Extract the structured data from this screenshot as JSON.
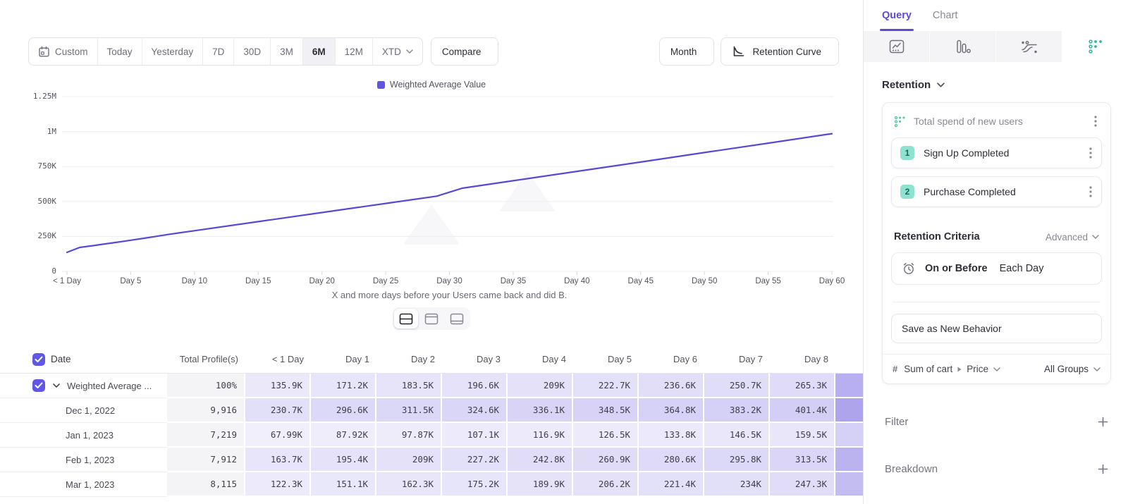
{
  "colors": {
    "accent_purple": "#5b49d8",
    "line": "#5848d6",
    "teal": "#2fb79c",
    "heat_rgb": "92,73,218"
  },
  "toolbar": {
    "date_ranges": [
      "Custom",
      "Today",
      "Yesterday",
      "7D",
      "30D",
      "3M",
      "6M",
      "12M",
      "XTD"
    ],
    "active_range": "6M",
    "compare_label": "Compare",
    "granularity_label": "Month",
    "chart_type_label": "Retention Curve"
  },
  "chart": {
    "y_ticks": [
      {
        "label": "1.25M",
        "value": 1250000
      },
      {
        "label": "1M",
        "value": 1000000
      },
      {
        "label": "750K",
        "value": 750000
      },
      {
        "label": "500K",
        "value": 500000
      },
      {
        "label": "250K",
        "value": 250000
      },
      {
        "label": "0",
        "value": 0
      }
    ],
    "x_ticks": [
      {
        "label": "< 1 Day",
        "day": 0
      },
      {
        "label": "Day 5",
        "day": 5
      },
      {
        "label": "Day 10",
        "day": 10
      },
      {
        "label": "Day 15",
        "day": 15
      },
      {
        "label": "Day 20",
        "day": 20
      },
      {
        "label": "Day 25",
        "day": 25
      },
      {
        "label": "Day 30",
        "day": 30
      },
      {
        "label": "Day 35",
        "day": 35
      },
      {
        "label": "Day 40",
        "day": 40
      },
      {
        "label": "Day 45",
        "day": 45
      },
      {
        "label": "Day 50",
        "day": 50
      },
      {
        "label": "Day 55",
        "day": 55
      },
      {
        "label": "Day 60",
        "day": 60
      }
    ]
  },
  "chart_data": {
    "type": "line",
    "title": "",
    "xlabel": "X and more days before your Users came back and did B.",
    "ylabel": "",
    "xlim": [
      0,
      60
    ],
    "ylim": [
      0,
      1250000
    ],
    "grid": "horizontal",
    "legend_position": "top-center",
    "series": [
      {
        "name": "Weighted Average Value",
        "color": "#5848d6",
        "points": [
          [
            0,
            135900
          ],
          [
            1,
            171200
          ],
          [
            2,
            183500
          ],
          [
            3,
            196600
          ],
          [
            4,
            209000
          ],
          [
            5,
            222700
          ],
          [
            6,
            236600
          ],
          [
            7,
            250700
          ],
          [
            8,
            265300
          ],
          [
            10,
            291000
          ],
          [
            15,
            356000
          ],
          [
            20,
            421000
          ],
          [
            25,
            486000
          ],
          [
            29,
            538000
          ],
          [
            31,
            595000
          ],
          [
            35,
            648000
          ],
          [
            40,
            715000
          ],
          [
            45,
            782000
          ],
          [
            50,
            850000
          ],
          [
            55,
            917000
          ],
          [
            60,
            985000
          ]
        ]
      }
    ]
  },
  "view_toggles": [
    {
      "name": "split-view",
      "active": true
    },
    {
      "name": "chart-view",
      "active": false
    },
    {
      "name": "table-view",
      "active": false
    }
  ],
  "table": {
    "headers": [
      "Date",
      "Total Profile(s)",
      "< 1 Day",
      "Day 1",
      "Day 2",
      "Day 3",
      "Day 4",
      "Day 5",
      "Day 6",
      "Day 7",
      "Day 8"
    ],
    "rows": [
      {
        "label": "Weighted Average ...",
        "expandable": true,
        "checked": true,
        "total": "100%",
        "values": [
          "135.9K",
          "171.2K",
          "183.5K",
          "196.6K",
          "209K",
          "222.7K",
          "236.6K",
          "250.7K",
          "265.3K"
        ],
        "day9_shade": 0.44
      },
      {
        "label": "Dec 1, 2022",
        "expandable": false,
        "checked": false,
        "total": "9,916",
        "values": [
          "230.7K",
          "296.6K",
          "311.5K",
          "324.6K",
          "336.1K",
          "348.5K",
          "364.8K",
          "383.2K",
          "401.4K"
        ],
        "day9_shade": 0.5
      },
      {
        "label": "Jan 1, 2023",
        "expandable": false,
        "checked": false,
        "total": "7,219",
        "values": [
          "67.99K",
          "87.92K",
          "97.87K",
          "107.1K",
          "116.9K",
          "126.5K",
          "133.8K",
          "146.5K",
          "159.5K"
        ],
        "day9_shade": 0.26
      },
      {
        "label": "Feb 1, 2023",
        "expandable": false,
        "checked": false,
        "total": "7,912",
        "values": [
          "163.7K",
          "195.4K",
          "209K",
          "227.2K",
          "242.8K",
          "260.9K",
          "280.6K",
          "295.8K",
          "313.5K"
        ],
        "day9_shade": 0.42
      },
      {
        "label": "Mar 1, 2023",
        "expandable": false,
        "checked": false,
        "total": "8,115",
        "values": [
          "122.3K",
          "151.1K",
          "162.3K",
          "175.2K",
          "189.9K",
          "206.2K",
          "221.4K",
          "234K",
          "247.3K"
        ],
        "day9_shade": 0.36
      }
    ]
  },
  "query_panel": {
    "tabs": [
      {
        "label": "Query",
        "active": true
      },
      {
        "label": "Chart",
        "active": false
      }
    ],
    "report_types": [
      "insights",
      "funnels",
      "flows",
      "retention"
    ],
    "active_report": "retention",
    "section_label": "Retention",
    "behavior": {
      "title": "Total spend of new users",
      "steps": [
        {
          "index": "1",
          "label": "Sign Up Completed"
        },
        {
          "index": "2",
          "label": "Purchase Completed"
        }
      ],
      "criteria_label": "Retention Criteria",
      "criteria_mode": "Advanced",
      "criteria": {
        "condition": "On or Before",
        "window": "Each Day"
      },
      "save_label": "Save as New Behavior",
      "measure": {
        "prefix": "#",
        "event": "Sum of cart",
        "property": "Price",
        "groups": "All Groups"
      }
    },
    "add_sections": [
      {
        "label": "Filter"
      },
      {
        "label": "Breakdown"
      }
    ]
  }
}
